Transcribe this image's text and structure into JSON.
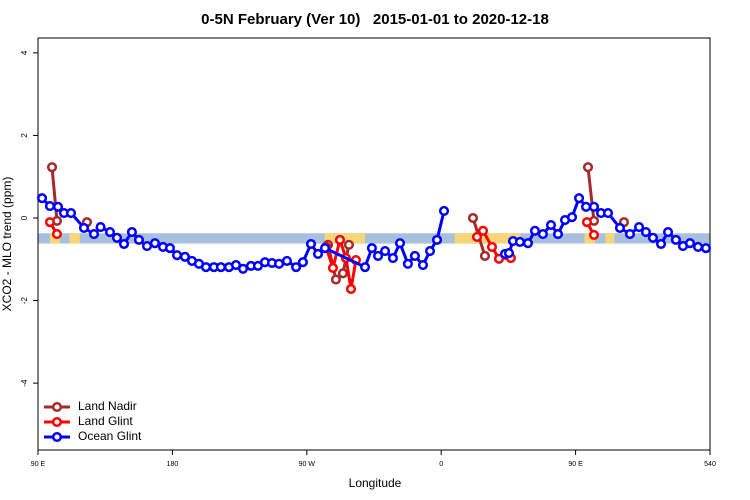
{
  "chart_data": {
    "type": "line",
    "title": "0-5N February (Ver 10)   2015-01-01 to 2020-12-18",
    "x_label": "Longitude",
    "y_label": "XCO2 - MLO trend (ppm)",
    "xlim": [
      90,
      540
    ],
    "ylim": [
      -5.62,
      4.36
    ],
    "xticks": [
      {
        "value": 90,
        "label": "90 E"
      },
      180,
      {
        "value": 270,
        "label": "90 W"
      },
      {
        "value": 360,
        "label": "0"
      },
      {
        "value": 450,
        "label": "90 E"
      },
      540
    ],
    "yticks": [
      -4,
      -2,
      0,
      2,
      4
    ],
    "legend": "bottom-left",
    "band": {
      "range": [
        -0.37,
        -0.62
      ],
      "color": "#a9bfde"
    },
    "land_spans": {
      "color": "#f7d67a",
      "spans": [
        [
          98,
          104.7
        ],
        [
          111,
          118
        ],
        [
          282,
          309
        ],
        [
          369,
          413
        ],
        [
          456,
          463
        ],
        [
          470,
          476
        ]
      ]
    },
    "series": [
      {
        "name": "Land Nadir",
        "color": "#a52a2a",
        "x": [
          99.4,
          102.7,
          110,
          122.8,
          200,
          284.2,
          289.5,
          294.2,
          298.2,
          380,
          381.3,
          389.3,
          420,
          458.3,
          462.3,
          470,
          482.4
        ],
        "values": [
          1.23,
          -0.07,
          null,
          -0.1,
          null,
          -0.65,
          -1.49,
          -1.34,
          -0.65,
          null,
          0.0,
          -0.92,
          null,
          1.23,
          -0.07,
          null,
          -0.1
        ]
      },
      {
        "name": "Land Glint",
        "color": "#ff0000",
        "x": [
          98.0,
          102.7,
          200,
          282.9,
          287.5,
          292.2,
          296.2,
          299.6,
          302.9,
          380,
          384.0,
          388.0,
          394.0,
          398.7,
          404.0,
          406.7,
          500,
          457.6,
          462.3
        ],
        "values": [
          -0.1,
          -0.39,
          null,
          -0.7,
          -1.21,
          -0.53,
          -0.97,
          -1.72,
          -1.02,
          null,
          -0.46,
          -0.31,
          -0.7,
          -0.99,
          -0.9,
          -0.97,
          null,
          -0.1,
          -0.41
        ]
      },
      {
        "name": "Ocean Glint",
        "color": "#0000ff",
        "x": [
          92.7,
          98.0,
          103.4,
          107.4,
          112.1,
          120.8,
          127.5,
          131.9,
          138.2,
          142.9,
          147.6,
          152.9,
          157.6,
          163.0,
          168.3,
          173.7,
          178.4,
          183.1,
          188.4,
          193.1,
          197.8,
          202.5,
          207.8,
          212.5,
          217.9,
          222.6,
          227.3,
          232.6,
          237.3,
          242.0,
          246.7,
          251.4,
          256.7,
          262.8,
          267.4,
          272.8,
          277.5,
          282.2,
          309.0,
          313.6,
          317.7,
          322.4,
          327.7,
          332.4,
          337.7,
          342.4,
          347.8,
          352.5,
          357.2,
          361.9,
          380,
          402.7,
          405.4,
          408.1,
          412.7,
          418.1,
          422.8,
          428.1,
          433.5,
          438.2,
          442.9,
          447.6,
          452.3,
          457.0,
          462.3,
          467.0,
          471.7,
          479.7,
          486.4,
          492.5,
          497.1,
          501.8,
          507.2,
          511.9,
          517.2,
          521.9,
          526.6,
          532.0,
          537.3
        ],
        "values": [
          0.48,
          0.29,
          0.27,
          0.12,
          0.12,
          -0.24,
          -0.39,
          -0.22,
          -0.34,
          -0.48,
          -0.63,
          -0.34,
          -0.53,
          -0.68,
          -0.61,
          -0.7,
          -0.73,
          -0.9,
          -0.94,
          -1.04,
          -1.11,
          -1.19,
          -1.19,
          -1.19,
          -1.19,
          -1.14,
          -1.23,
          -1.16,
          -1.16,
          -1.07,
          -1.09,
          -1.11,
          -1.04,
          -1.19,
          -1.07,
          -0.63,
          -0.87,
          -0.73,
          -1.19,
          -0.73,
          -0.92,
          -0.8,
          -0.97,
          -0.61,
          -1.11,
          -0.92,
          -1.14,
          -0.8,
          -0.53,
          0.17,
          null,
          -0.87,
          -0.85,
          -0.56,
          -0.58,
          -0.61,
          -0.31,
          -0.39,
          -0.17,
          -0.39,
          -0.05,
          0.02,
          0.48,
          0.27,
          0.27,
          0.12,
          0.12,
          -0.24,
          -0.39,
          -0.22,
          -0.34,
          -0.48,
          -0.63,
          -0.34,
          -0.53,
          -0.68,
          -0.61,
          -0.7,
          -0.73
        ]
      }
    ]
  }
}
